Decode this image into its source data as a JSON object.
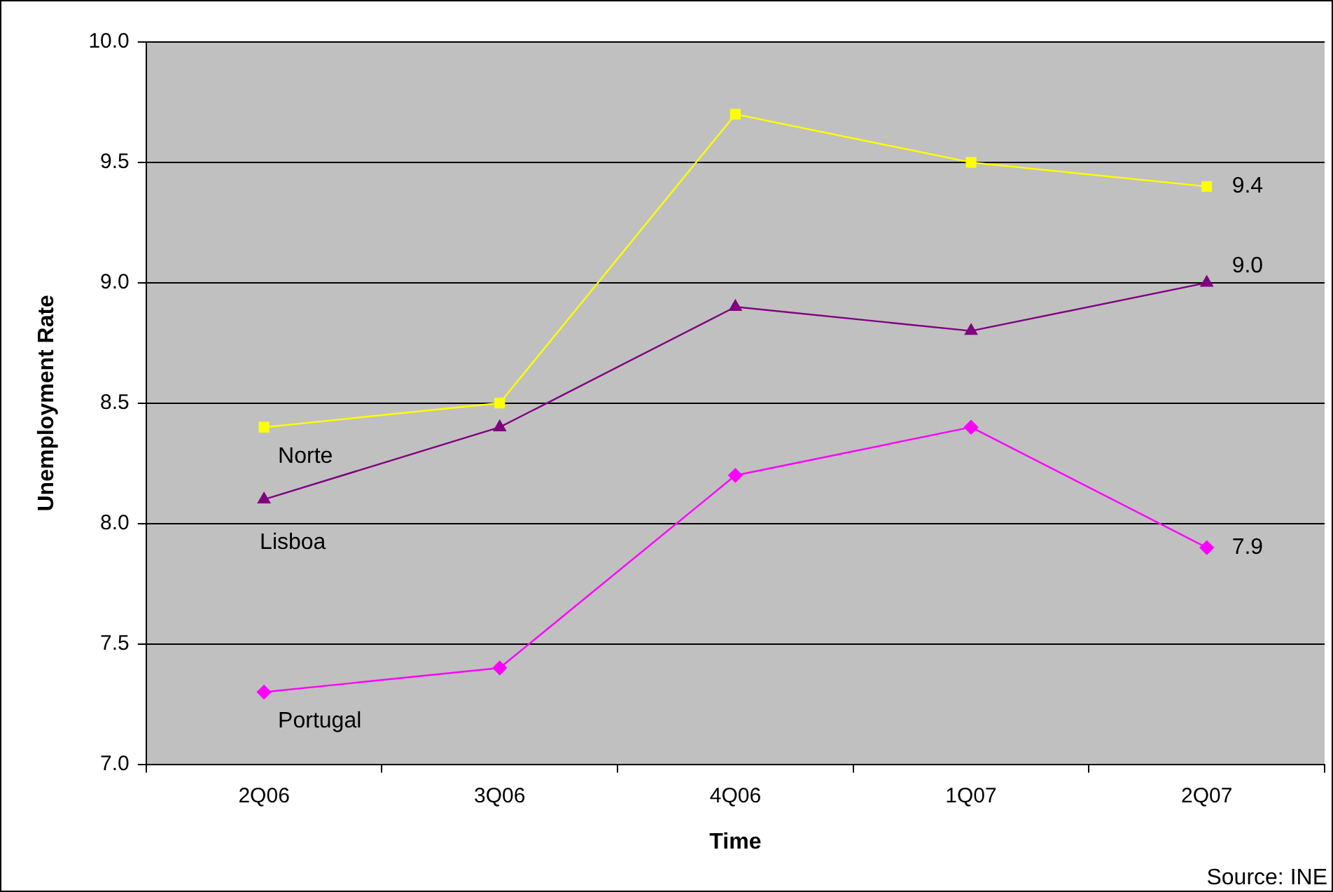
{
  "chart_data": {
    "type": "line",
    "xlabel": "Time",
    "ylabel": "Unemployment Rate",
    "categories": [
      "2Q06",
      "3Q06",
      "4Q06",
      "1Q07",
      "2Q07"
    ],
    "series": [
      {
        "name": "Norte",
        "color": "#ffff00",
        "marker": "square",
        "values": [
          8.4,
          8.5,
          9.7,
          9.5,
          9.4
        ],
        "value_labels": [
          null,
          null,
          null,
          null,
          "9.4"
        ]
      },
      {
        "name": "Lisboa",
        "color": "#800080",
        "marker": "triangle",
        "values": [
          8.1,
          8.4,
          8.9,
          8.8,
          9.0
        ],
        "value_labels": [
          null,
          null,
          null,
          null,
          "9.0"
        ]
      },
      {
        "name": "Portugal",
        "color": "#ff00ff",
        "marker": "diamond",
        "values": [
          7.3,
          7.4,
          8.2,
          8.4,
          7.9
        ],
        "value_labels": [
          null,
          null,
          null,
          null,
          "7.9"
        ]
      }
    ],
    "ylim": [
      7,
      10
    ],
    "yticks": [
      {
        "value": 7,
        "label": "7.0"
      },
      {
        "value": 7.5,
        "label": "7.5"
      },
      {
        "value": 8,
        "label": "8.0"
      },
      {
        "value": 8.5,
        "label": "8.5"
      },
      {
        "value": 9,
        "label": "9.0"
      },
      {
        "value": 9.5,
        "label": "9.5"
      },
      {
        "value": 10,
        "label": "10.0"
      }
    ],
    "grid": "y",
    "legend": false,
    "annotations": [
      "Source: INE"
    ]
  }
}
